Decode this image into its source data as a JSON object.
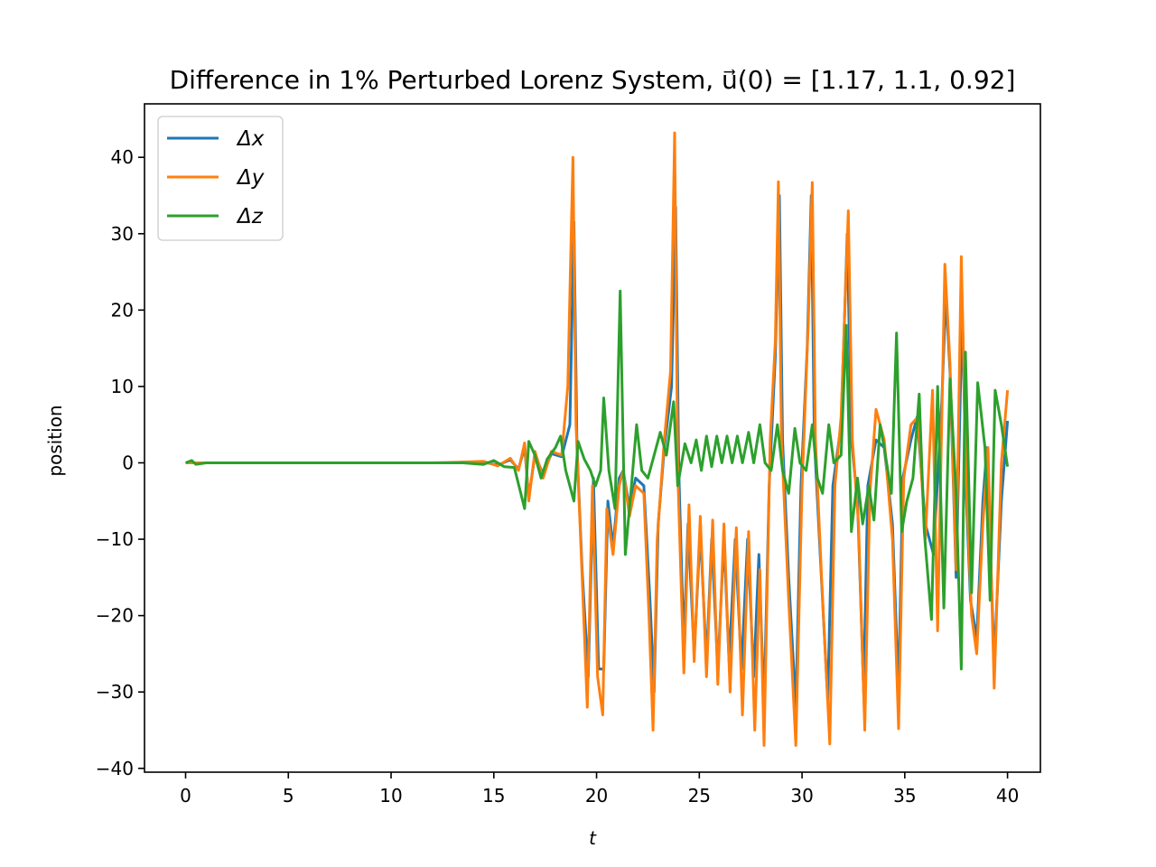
{
  "chart_data": {
    "type": "line",
    "title": "Difference in 1% Perturbed Lorenz System, u⃗(0) = [1.17, 1.1, 0.92]",
    "xlabel": "t",
    "ylabel": "position",
    "xlim": [
      -2,
      41.6
    ],
    "ylim": [
      -40.5,
      47.0
    ],
    "x_ticks": [
      0,
      5,
      10,
      15,
      20,
      25,
      30,
      35,
      40
    ],
    "x_tick_labels": [
      "0",
      "5",
      "10",
      "15",
      "20",
      "25",
      "30",
      "35",
      "40"
    ],
    "y_ticks": [
      -40,
      -30,
      -20,
      -10,
      0,
      10,
      20,
      30,
      40
    ],
    "y_tick_labels": [
      "−40",
      "−30",
      "−20",
      "−10",
      "0",
      "10",
      "20",
      "30",
      "40"
    ],
    "grid": false,
    "legend_position": "top-left",
    "series": [
      {
        "name": "Δx",
        "color": "#1f77b4",
        "points": [
          [
            0,
            0
          ],
          [
            2,
            0
          ],
          [
            4,
            0
          ],
          [
            6,
            0
          ],
          [
            8,
            0
          ],
          [
            10,
            0
          ],
          [
            12,
            0
          ],
          [
            13.5,
            0
          ],
          [
            14.5,
            0.1
          ],
          [
            15.2,
            -0.3
          ],
          [
            15.8,
            0.4
          ],
          [
            16.2,
            -0.8
          ],
          [
            16.5,
            2.0
          ],
          [
            16.7,
            -4.5
          ],
          [
            17.0,
            1.0
          ],
          [
            17.4,
            -1.5
          ],
          [
            17.8,
            1.2
          ],
          [
            18.3,
            0.8
          ],
          [
            18.7,
            5.0
          ],
          [
            18.9,
            31.5
          ],
          [
            19.05,
            2.0
          ],
          [
            19.3,
            -14.0
          ],
          [
            19.6,
            -28.0
          ],
          [
            19.85,
            -2.0
          ],
          [
            20.1,
            -27.0
          ],
          [
            20.35,
            -27.0
          ],
          [
            20.55,
            -5.0
          ],
          [
            20.8,
            -11.0
          ],
          [
            21.1,
            -2.0
          ],
          [
            21.3,
            -1.0
          ],
          [
            21.6,
            -6.0
          ],
          [
            21.9,
            -2.0
          ],
          [
            22.3,
            -3.0
          ],
          [
            22.6,
            -18.0
          ],
          [
            22.8,
            -30.0
          ],
          [
            23.0,
            -8.0
          ],
          [
            23.3,
            2.0
          ],
          [
            23.65,
            10.0
          ],
          [
            23.85,
            33.5
          ],
          [
            24.0,
            -1.0
          ],
          [
            24.25,
            -24.0
          ],
          [
            24.45,
            -8.0
          ],
          [
            24.75,
            -25.0
          ],
          [
            25.05,
            -9.0
          ],
          [
            25.35,
            -26.0
          ],
          [
            25.6,
            -10.0
          ],
          [
            25.9,
            -27.0
          ],
          [
            26.2,
            -10.0
          ],
          [
            26.45,
            -26.0
          ],
          [
            26.75,
            -10.0
          ],
          [
            27.05,
            -27.0
          ],
          [
            27.35,
            -10.0
          ],
          [
            27.65,
            -28.0
          ],
          [
            27.9,
            -12.0
          ],
          [
            28.15,
            -32.0
          ],
          [
            28.4,
            -3.0
          ],
          [
            28.7,
            14.0
          ],
          [
            28.9,
            35.0
          ],
          [
            29.05,
            3.0
          ],
          [
            29.35,
            -15.0
          ],
          [
            29.7,
            -32.0
          ],
          [
            29.95,
            -3.0
          ],
          [
            30.25,
            15.0
          ],
          [
            30.45,
            35.0
          ],
          [
            30.6,
            3.0
          ],
          [
            30.9,
            -13.0
          ],
          [
            31.25,
            -31.0
          ],
          [
            31.5,
            -3.0
          ],
          [
            31.9,
            5.0
          ],
          [
            32.2,
            30.0
          ],
          [
            32.4,
            3.0
          ],
          [
            32.7,
            -5.0
          ],
          [
            33.0,
            -30.0
          ],
          [
            33.2,
            -3.0
          ],
          [
            33.6,
            3.0
          ],
          [
            34.0,
            2.0
          ],
          [
            34.4,
            -8.0
          ],
          [
            34.7,
            -30.0
          ],
          [
            34.9,
            -2.0
          ],
          [
            35.3,
            3.0
          ],
          [
            35.6,
            6.0
          ],
          [
            36.0,
            -8.0
          ],
          [
            36.4,
            -12.0
          ],
          [
            36.8,
            8.0
          ],
          [
            37.0,
            22.0
          ],
          [
            37.2,
            12.0
          ],
          [
            37.5,
            -15.0
          ],
          [
            37.8,
            20.0
          ],
          [
            38.0,
            -5.0
          ],
          [
            38.2,
            -18.0
          ],
          [
            38.5,
            -23.0
          ],
          [
            38.8,
            -5.0
          ],
          [
            39.0,
            2.0
          ],
          [
            39.35,
            -26.0
          ],
          [
            39.7,
            -5.0
          ],
          [
            40.0,
            5.5
          ]
        ]
      },
      {
        "name": "Δy",
        "color": "#ff7f0e",
        "points": [
          [
            0,
            0
          ],
          [
            2,
            0
          ],
          [
            4,
            0
          ],
          [
            6,
            0
          ],
          [
            8,
            0
          ],
          [
            10,
            0
          ],
          [
            12,
            0
          ],
          [
            13.5,
            0.1
          ],
          [
            14.5,
            0.2
          ],
          [
            15.2,
            -0.4
          ],
          [
            15.8,
            0.6
          ],
          [
            16.2,
            -1.0
          ],
          [
            16.5,
            2.6
          ],
          [
            16.7,
            -5.0
          ],
          [
            17.0,
            1.5
          ],
          [
            17.4,
            -2.0
          ],
          [
            17.8,
            1.5
          ],
          [
            18.3,
            1.0
          ],
          [
            18.6,
            10.0
          ],
          [
            18.85,
            40.0
          ],
          [
            19.0,
            5.0
          ],
          [
            19.3,
            -15.0
          ],
          [
            19.55,
            -32.0
          ],
          [
            19.8,
            -3.0
          ],
          [
            20.05,
            -28.0
          ],
          [
            20.3,
            -33.0
          ],
          [
            20.5,
            -6.0
          ],
          [
            20.8,
            -12.0
          ],
          [
            21.1,
            -3.0
          ],
          [
            21.3,
            -1.0
          ],
          [
            21.6,
            -7.0
          ],
          [
            21.9,
            -3.0
          ],
          [
            22.3,
            -4.0
          ],
          [
            22.55,
            -20.0
          ],
          [
            22.75,
            -35.0
          ],
          [
            22.95,
            -10.0
          ],
          [
            23.3,
            3.0
          ],
          [
            23.6,
            12.0
          ],
          [
            23.8,
            43.2
          ],
          [
            23.95,
            -1.0
          ],
          [
            24.25,
            -27.5
          ],
          [
            24.5,
            -5.5
          ],
          [
            24.75,
            -26.0
          ],
          [
            25.05,
            -7.0
          ],
          [
            25.35,
            -28.0
          ],
          [
            25.65,
            -7.5
          ],
          [
            25.9,
            -29.0
          ],
          [
            26.2,
            -8.0
          ],
          [
            26.5,
            -30.0
          ],
          [
            26.8,
            -8.5
          ],
          [
            27.1,
            -33.0
          ],
          [
            27.4,
            -9.0
          ],
          [
            27.7,
            -35.0
          ],
          [
            27.95,
            -14.0
          ],
          [
            28.15,
            -37.0
          ],
          [
            28.45,
            3.0
          ],
          [
            28.7,
            16.0
          ],
          [
            28.85,
            36.8
          ],
          [
            29.0,
            3.0
          ],
          [
            29.35,
            -18.0
          ],
          [
            29.7,
            -37.0
          ],
          [
            30.0,
            -3.0
          ],
          [
            30.3,
            18.0
          ],
          [
            30.5,
            36.7
          ],
          [
            30.65,
            3.0
          ],
          [
            30.95,
            -15.0
          ],
          [
            31.35,
            -36.8
          ],
          [
            31.6,
            -3.0
          ],
          [
            31.9,
            6.0
          ],
          [
            32.25,
            33.0
          ],
          [
            32.45,
            3.0
          ],
          [
            32.75,
            -8.0
          ],
          [
            33.05,
            -35.0
          ],
          [
            33.3,
            -4.0
          ],
          [
            33.6,
            7.0
          ],
          [
            34.0,
            3.0
          ],
          [
            34.4,
            -10.0
          ],
          [
            34.7,
            -34.8
          ],
          [
            34.95,
            -2.0
          ],
          [
            35.3,
            5.0
          ],
          [
            35.65,
            6.0
          ],
          [
            36.0,
            -10.0
          ],
          [
            36.35,
            9.5
          ],
          [
            36.6,
            -22.0
          ],
          [
            36.95,
            26.0
          ],
          [
            37.2,
            13.0
          ],
          [
            37.5,
            -14.0
          ],
          [
            37.75,
            27.0
          ],
          [
            38.0,
            -3.0
          ],
          [
            38.25,
            -20.0
          ],
          [
            38.5,
            -25.0
          ],
          [
            38.8,
            -8.0
          ],
          [
            39.05,
            2.0
          ],
          [
            39.35,
            -29.5
          ],
          [
            39.7,
            0.0
          ],
          [
            40.0,
            9.5
          ]
        ]
      },
      {
        "name": "Δz",
        "color": "#2ca02c",
        "points": [
          [
            0,
            0
          ],
          [
            0.3,
            0.3
          ],
          [
            0.5,
            -0.2
          ],
          [
            1,
            0
          ],
          [
            4,
            0
          ],
          [
            8,
            0
          ],
          [
            12,
            0
          ],
          [
            13.5,
            0
          ],
          [
            14.5,
            -0.2
          ],
          [
            15.0,
            0.3
          ],
          [
            15.5,
            -0.5
          ],
          [
            16.0,
            -0.6
          ],
          [
            16.5,
            -6.0
          ],
          [
            16.7,
            2.8
          ],
          [
            17.0,
            1.0
          ],
          [
            17.3,
            -2.0
          ],
          [
            17.6,
            0.5
          ],
          [
            18.0,
            2.0
          ],
          [
            18.25,
            3.5
          ],
          [
            18.5,
            -1.0
          ],
          [
            18.9,
            -5.0
          ],
          [
            19.1,
            2.8
          ],
          [
            19.4,
            0.5
          ],
          [
            19.7,
            -1.0
          ],
          [
            19.95,
            -3.0
          ],
          [
            20.2,
            -1.0
          ],
          [
            20.35,
            8.5
          ],
          [
            20.6,
            -1.0
          ],
          [
            20.9,
            -6.0
          ],
          [
            21.15,
            22.5
          ],
          [
            21.4,
            -12.0
          ],
          [
            21.7,
            -3.0
          ],
          [
            21.95,
            5.0
          ],
          [
            22.2,
            -1.0
          ],
          [
            22.5,
            -2.0
          ],
          [
            22.8,
            1.0
          ],
          [
            23.1,
            4.0
          ],
          [
            23.4,
            1.0
          ],
          [
            23.75,
            8.0
          ],
          [
            23.95,
            -3.0
          ],
          [
            24.3,
            2.5
          ],
          [
            24.6,
            0.0
          ],
          [
            24.85,
            3.0
          ],
          [
            25.1,
            -1.0
          ],
          [
            25.35,
            3.5
          ],
          [
            25.6,
            -0.5
          ],
          [
            25.85,
            3.5
          ],
          [
            26.1,
            0.0
          ],
          [
            26.35,
            3.5
          ],
          [
            26.6,
            0.0
          ],
          [
            26.85,
            3.5
          ],
          [
            27.1,
            0.0
          ],
          [
            27.4,
            4.0
          ],
          [
            27.65,
            0.0
          ],
          [
            27.95,
            5.0
          ],
          [
            28.2,
            0.0
          ],
          [
            28.5,
            -1.0
          ],
          [
            28.8,
            5.0
          ],
          [
            29.05,
            -1.0
          ],
          [
            29.35,
            -4.0
          ],
          [
            29.65,
            4.5
          ],
          [
            29.9,
            0.0
          ],
          [
            30.2,
            -1.0
          ],
          [
            30.5,
            5.0
          ],
          [
            30.75,
            -2.0
          ],
          [
            31.0,
            -4.0
          ],
          [
            31.3,
            5.0
          ],
          [
            31.55,
            0.0
          ],
          [
            31.9,
            1.0
          ],
          [
            32.15,
            18.0
          ],
          [
            32.4,
            -9.0
          ],
          [
            32.7,
            -2.0
          ],
          [
            32.95,
            -8.0
          ],
          [
            33.25,
            -3.0
          ],
          [
            33.5,
            -7.5
          ],
          [
            33.8,
            5.0
          ],
          [
            34.0,
            2.0
          ],
          [
            34.35,
            -4.0
          ],
          [
            34.6,
            17.0
          ],
          [
            34.85,
            -9.0
          ],
          [
            35.1,
            -5.0
          ],
          [
            35.4,
            -2.0
          ],
          [
            35.7,
            9.0
          ],
          [
            35.95,
            -9.0
          ],
          [
            36.3,
            -20.5
          ],
          [
            36.6,
            10.0
          ],
          [
            36.9,
            -19.0
          ],
          [
            37.2,
            11.0
          ],
          [
            37.5,
            -4.0
          ],
          [
            37.75,
            -27.0
          ],
          [
            37.95,
            14.5
          ],
          [
            38.25,
            -17.0
          ],
          [
            38.55,
            10.5
          ],
          [
            38.9,
            2.0
          ],
          [
            39.15,
            -18.0
          ],
          [
            39.4,
            9.5
          ],
          [
            39.7,
            5.0
          ],
          [
            40.0,
            -0.5
          ]
        ]
      }
    ]
  }
}
